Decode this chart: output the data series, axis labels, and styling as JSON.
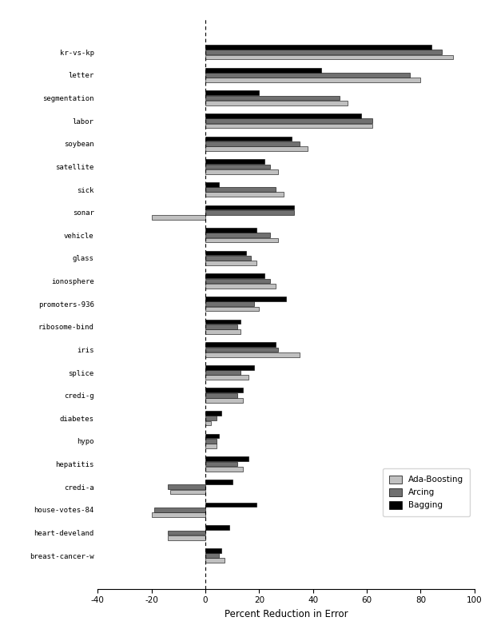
{
  "categories": [
    "kr-vs-kp",
    "letter",
    "segmentation",
    "labor",
    "soybean",
    "satellite",
    "sick",
    "sonar",
    "vehicle",
    "glass",
    "ionosphere",
    "promoters-936",
    "ribosome-bind",
    "iris",
    "splice",
    "credi-g",
    "diabetes",
    "hypo",
    "hepatitis",
    "credi-a",
    "house-votes-84",
    "heart-develand",
    "breast-cancer-w"
  ],
  "ada_boosting": [
    92,
    80,
    53,
    62,
    38,
    27,
    29,
    -20,
    27,
    19,
    26,
    20,
    13,
    35,
    16,
    14,
    2,
    4,
    14,
    -13,
    -20,
    -14,
    7
  ],
  "arcing": [
    88,
    76,
    50,
    62,
    35,
    24,
    26,
    33,
    24,
    17,
    24,
    18,
    12,
    27,
    13,
    12,
    4,
    4,
    12,
    -14,
    -19,
    -14,
    5
  ],
  "bagging": [
    84,
    43,
    20,
    58,
    32,
    22,
    5,
    33,
    19,
    15,
    22,
    30,
    13,
    26,
    18,
    14,
    6,
    5,
    16,
    10,
    19,
    9,
    6
  ],
  "ada_color": "#c0c0c0",
  "arc_color": "#707070",
  "bag_color": "#000000",
  "xlabel": "Percent Reduction in Error",
  "xlim": [
    -40,
    100
  ],
  "xticks": [
    -40,
    -20,
    0,
    20,
    40,
    60,
    80,
    100
  ],
  "legend_labels": [
    "Ada-Boosting",
    "Arcing",
    "Bagging"
  ],
  "bar_height": 0.22,
  "figsize": [
    6.12,
    7.92
  ],
  "dpi": 100
}
